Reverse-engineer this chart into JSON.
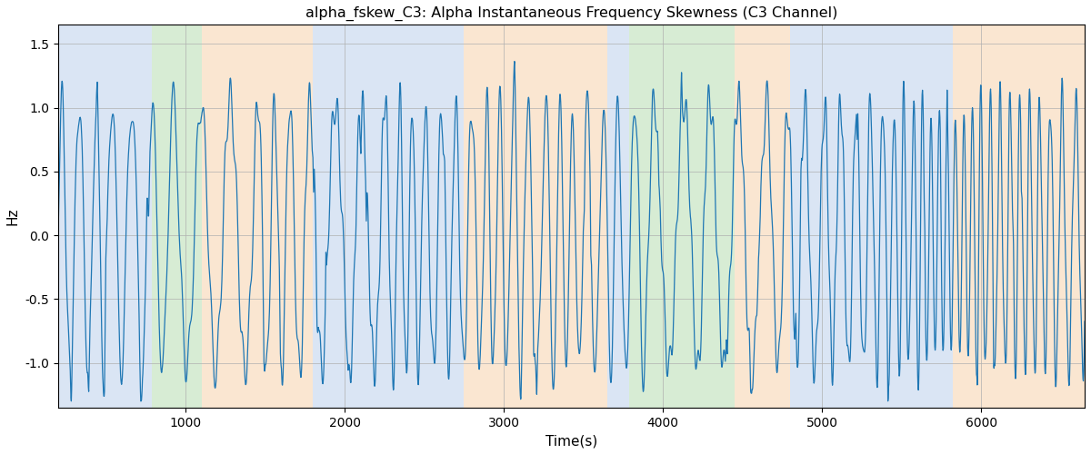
{
  "title": "alpha_fskew_C3: Alpha Instantaneous Frequency Skewness (C3 Channel)",
  "xlabel": "Time(s)",
  "ylabel": "Hz",
  "xlim": [
    200,
    6650
  ],
  "ylim": [
    -1.35,
    1.65
  ],
  "line_color": "#1f77b4",
  "line_width": 0.9,
  "background_color": "#ffffff",
  "grid_color": "#b0b0b0",
  "grid_linewidth": 0.5,
  "regions": [
    {
      "xmin": 200,
      "xmax": 790,
      "color": "#aec6e8",
      "alpha": 0.45
    },
    {
      "xmin": 790,
      "xmax": 1100,
      "color": "#a8d5a0",
      "alpha": 0.45
    },
    {
      "xmin": 1100,
      "xmax": 1800,
      "color": "#f5c99a",
      "alpha": 0.45
    },
    {
      "xmin": 1800,
      "xmax": 2750,
      "color": "#aec6e8",
      "alpha": 0.45
    },
    {
      "xmin": 2750,
      "xmax": 3650,
      "color": "#f5c99a",
      "alpha": 0.45
    },
    {
      "xmin": 3650,
      "xmax": 3790,
      "color": "#aec6e8",
      "alpha": 0.45
    },
    {
      "xmin": 3790,
      "xmax": 4450,
      "color": "#a8d5a0",
      "alpha": 0.45
    },
    {
      "xmin": 4450,
      "xmax": 4800,
      "color": "#f5c99a",
      "alpha": 0.45
    },
    {
      "xmin": 4800,
      "xmax": 5820,
      "color": "#aec6e8",
      "alpha": 0.45
    },
    {
      "xmin": 5820,
      "xmax": 6650,
      "color": "#f5c99a",
      "alpha": 0.45
    }
  ],
  "t_start": 200,
  "t_end": 6650,
  "n_points": 3000,
  "seed": 7,
  "xticks": [
    1000,
    2000,
    3000,
    4000,
    5000,
    6000
  ],
  "yticks": [
    -1.0,
    -0.5,
    0.0,
    0.5,
    1.0,
    1.5
  ],
  "figsize": [
    12.0,
    5.0
  ],
  "dpi": 100
}
